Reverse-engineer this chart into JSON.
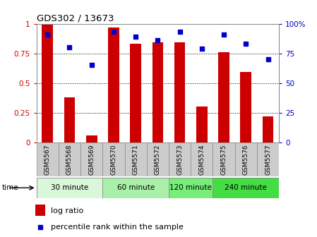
{
  "title": "GDS302 / 13673",
  "categories": [
    "GSM5567",
    "GSM5568",
    "GSM5569",
    "GSM5570",
    "GSM5571",
    "GSM5572",
    "GSM5573",
    "GSM5574",
    "GSM5575",
    "GSM5576",
    "GSM5577"
  ],
  "log_ratio": [
    1.0,
    0.38,
    0.06,
    0.97,
    0.83,
    0.84,
    0.84,
    0.3,
    0.76,
    0.59,
    0.22
  ],
  "percentile": [
    91,
    80,
    65,
    93,
    89,
    86,
    93,
    79,
    91,
    83,
    70
  ],
  "time_groups": [
    {
      "label": "30 minute",
      "start": 0,
      "end": 3,
      "color": "#d9f7d9"
    },
    {
      "label": "60 minute",
      "start": 3,
      "end": 6,
      "color": "#aaf0aa"
    },
    {
      "label": "120 minute",
      "start": 6,
      "end": 8,
      "color": "#77ee77"
    },
    {
      "label": "240 minute",
      "start": 8,
      "end": 11,
      "color": "#44dd44"
    }
  ],
  "bar_color": "#cc0000",
  "dot_color": "#0000cc",
  "bar_width": 0.5,
  "ylim_left": [
    0,
    1.0
  ],
  "ylim_right": [
    0,
    100
  ],
  "yticks_left": [
    0,
    0.25,
    0.5,
    0.75,
    1.0
  ],
  "ytick_labels_left": [
    "0",
    "0.25",
    "0.5",
    "0.75",
    "1"
  ],
  "yticks_right": [
    0,
    25,
    50,
    75,
    100
  ],
  "ytick_labels_right": [
    "0",
    "25",
    "50",
    "75",
    "100%"
  ],
  "grid_color": "#000000",
  "bg_color": "#ffffff",
  "tick_label_color_left": "#cc0000",
  "tick_label_color_right": "#0000cc",
  "legend_log": "log ratio",
  "legend_pct": "percentile rank within the sample",
  "xlabel_row_bg": "#cccccc",
  "spine_color": "#888888"
}
